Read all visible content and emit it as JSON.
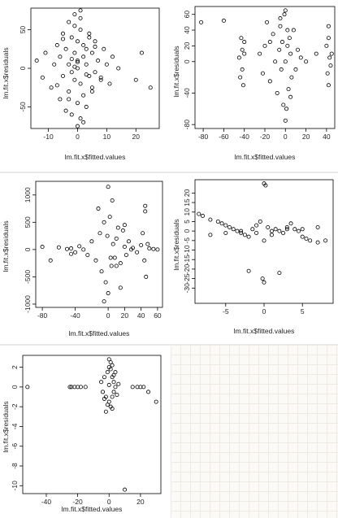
{
  "chart_data": [
    {
      "type": "scatter",
      "xlabel": "lm.fit.x$fitted.values",
      "ylabel": "lm.fit.x$residuals",
      "xlim": [
        -16,
        28
      ],
      "ylim": [
        -78,
        78
      ],
      "xticks": [
        -10,
        0,
        10,
        20
      ],
      "yticks": [
        -50,
        0,
        50
      ],
      "x": [
        -14,
        -12,
        -11,
        -9,
        -8,
        -7,
        -6,
        -6,
        -5,
        -5,
        -4,
        -4,
        -3,
        -3,
        -3,
        -2,
        -2,
        -2,
        -1,
        -1,
        -1,
        0,
        0,
        0,
        0,
        1,
        1,
        1,
        2,
        2,
        2,
        3,
        3,
        3,
        4,
        4,
        5,
        5,
        6,
        6,
        7,
        8,
        9,
        10,
        11,
        12,
        14,
        20,
        22,
        25,
        -1,
        2,
        4,
        -3,
        1,
        0,
        -2,
        3,
        5,
        -5,
        6,
        -7,
        8,
        0,
        1,
        -1
      ],
      "y": [
        10,
        -12,
        20,
        -25,
        5,
        30,
        -40,
        15,
        45,
        -10,
        25,
        -55,
        60,
        5,
        -30,
        40,
        -5,
        -60,
        20,
        70,
        -15,
        0,
        35,
        -45,
        10,
        -20,
        50,
        -65,
        15,
        -35,
        30,
        5,
        -50,
        25,
        -10,
        40,
        20,
        -25,
        -5,
        35,
        10,
        -15,
        25,
        5,
        -20,
        15,
        0,
        -15,
        20,
        -25,
        55,
        -70,
        45,
        -40,
        65,
        8,
        12,
        -8,
        -30,
        38,
        28,
        -22,
        -12,
        -75,
        75,
        2
      ]
    },
    {
      "type": "scatter",
      "xlabel": "lm.fit.x$fitted.values",
      "ylabel": "lm.fit.x$residuals",
      "xlim": [
        -88,
        48
      ],
      "ylim": [
        -85,
        70
      ],
      "xticks": [
        -80,
        -60,
        -40,
        -20,
        0,
        20,
        40
      ],
      "yticks": [
        -80,
        -40,
        0,
        20,
        40,
        60
      ],
      "x": [
        -82,
        -60,
        -45,
        -44,
        -43,
        -42,
        -42,
        -41,
        -40,
        -25,
        -22,
        -20,
        -18,
        -15,
        -12,
        -10,
        -8,
        -6,
        -5,
        -4,
        -3,
        -2,
        -1,
        0,
        0,
        1,
        2,
        3,
        4,
        5,
        6,
        8,
        10,
        12,
        15,
        20,
        30,
        40,
        41,
        42,
        42,
        43,
        44,
        45,
        -15,
        0,
        5,
        -40,
        42,
        -5,
        2
      ],
      "y": [
        50,
        52,
        5,
        -20,
        30,
        -10,
        15,
        -30,
        25,
        10,
        -15,
        20,
        50,
        -25,
        35,
        0,
        -40,
        15,
        45,
        -10,
        25,
        -55,
        60,
        0,
        65,
        -60,
        20,
        -35,
        30,
        10,
        -20,
        40,
        -10,
        15,
        5,
        0,
        10,
        20,
        -15,
        30,
        -30,
        5,
        -5,
        10,
        25,
        -75,
        -45,
        10,
        45,
        55,
        40
      ]
    },
    {
      "type": "scatter",
      "xlabel": "lm.fit.x$fitted.values",
      "ylabel": "lm.fit.x$residuals",
      "xlim": [
        -88,
        66
      ],
      "ylim": [
        -1060,
        1250
      ],
      "xticks": [
        -80,
        -40,
        0,
        20,
        40,
        60
      ],
      "yticks": [
        -1000,
        -500,
        0,
        500,
        1000
      ],
      "x": [
        -80,
        -70,
        -60,
        -50,
        -45,
        -40,
        -35,
        -30,
        -25,
        -20,
        -15,
        -10,
        -8,
        -5,
        -3,
        -1,
        0,
        2,
        4,
        6,
        8,
        10,
        12,
        15,
        18,
        20,
        22,
        25,
        28,
        30,
        35,
        40,
        42,
        44,
        45,
        46,
        48,
        50,
        55,
        60,
        -5,
        0,
        5,
        15,
        -12,
        10,
        20,
        -45,
        45,
        3
      ],
      "y": [
        50,
        -200,
        40,
        10,
        20,
        -50,
        60,
        0,
        -100,
        150,
        -200,
        300,
        -400,
        500,
        -600,
        250,
        -800,
        600,
        -300,
        100,
        -150,
        200,
        400,
        -250,
        350,
        50,
        -100,
        150,
        0,
        30,
        -50,
        80,
        300,
        -200,
        700,
        -500,
        100,
        20,
        10,
        0,
        -950,
        1150,
        900,
        -700,
        750,
        -300,
        450,
        -80,
        800,
        -150
      ]
    },
    {
      "type": "scatter",
      "xlabel": "lm.fit.x$fitted.values",
      "ylabel": "lm.fit.x$residuals",
      "xlim": [
        -9,
        9
      ],
      "ylim": [
        -38,
        27
      ],
      "xticks": [
        -5,
        0,
        5
      ],
      "yticks": [
        -30,
        -25,
        -20,
        -15,
        -10,
        -5,
        0,
        5,
        10,
        15,
        20
      ],
      "x": [
        -8.5,
        -8,
        -7,
        -6,
        -5.5,
        -5,
        -4.5,
        -4,
        -3.5,
        -3,
        -2.5,
        -2,
        -1.5,
        -1,
        -0.5,
        0,
        0.5,
        1,
        1.5,
        2,
        2.5,
        3,
        3.5,
        4,
        4.5,
        5,
        5.5,
        6,
        7,
        8,
        -7,
        -5,
        -3,
        -1,
        1,
        3,
        5,
        7,
        0,
        0.2,
        -0.2,
        0,
        -2,
        2
      ],
      "y": [
        9,
        8,
        6,
        5,
        4,
        3,
        2,
        1,
        0,
        -1,
        -2,
        -3,
        1,
        3,
        5,
        -5,
        2,
        -2,
        1,
        0,
        -1,
        2,
        4,
        1,
        0,
        -3,
        -4,
        -5,
        -6,
        -5,
        -2,
        -1,
        0,
        -1,
        0,
        1,
        1,
        2,
        25,
        24,
        -25,
        -27,
        -21,
        -22
      ]
    },
    {
      "type": "scatter",
      "xlabel": "lm.fit.x$fitted.values",
      "ylabel": "lm.fit.x$residuals",
      "xlim": [
        -55,
        33
      ],
      "ylim": [
        -10.8,
        3.2
      ],
      "xticks": [
        -40,
        -20,
        0,
        20
      ],
      "yticks": [
        -10,
        -8,
        -6,
        -4,
        -2,
        0,
        2
      ],
      "x": [
        -52,
        -25,
        -24,
        -22,
        -20,
        -18,
        -15,
        -5,
        -4,
        -3,
        -2,
        -1,
        0,
        0,
        1,
        1,
        2,
        2,
        3,
        3,
        4,
        4,
        5,
        6,
        -2,
        0,
        2,
        15,
        18,
        20,
        22,
        25,
        30,
        10,
        1,
        -1,
        3,
        0,
        2,
        -3
      ],
      "y": [
        0,
        0,
        0,
        0,
        0,
        0,
        0,
        0.5,
        -0.5,
        1,
        -1,
        1.5,
        -1.5,
        2,
        -2,
        2.5,
        1,
        -1,
        0.5,
        -0.5,
        1.5,
        0,
        -0.8,
        0.3,
        -2.5,
        2.8,
        -2.2,
        0,
        0,
        0,
        0,
        -0.5,
        -1.5,
        -10.4,
        1.8,
        -1.8,
        1.2,
        0.2,
        2.2,
        -1.2
      ]
    }
  ]
}
